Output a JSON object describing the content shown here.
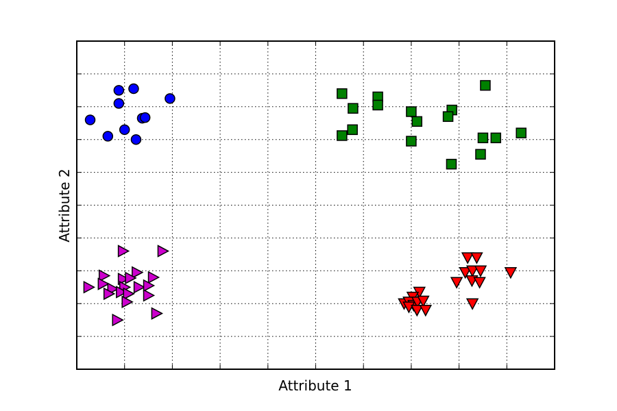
{
  "chart_data": {
    "type": "scatter",
    "title": "",
    "xlabel": "Attribute 1",
    "ylabel": "Attribute 2",
    "xlim": [
      0,
      10
    ],
    "ylim": [
      0,
      10
    ],
    "x_gridlines": [
      1,
      2,
      3,
      4,
      5,
      6,
      7,
      8,
      9
    ],
    "y_gridlines": [
      1,
      2,
      3,
      4,
      5,
      6,
      7,
      8,
      9
    ],
    "grid": true,
    "tick_labels_shown": false,
    "series": [
      {
        "marker": "circle",
        "color": "#0000ff",
        "points": [
          [
            0.88,
            8.5
          ],
          [
            1.19,
            8.55
          ],
          [
            0.88,
            8.1
          ],
          [
            1.95,
            8.25
          ],
          [
            0.28,
            7.6
          ],
          [
            1.37,
            7.65
          ],
          [
            1.43,
            7.67
          ],
          [
            1.0,
            7.3
          ],
          [
            0.65,
            7.1
          ],
          [
            1.24,
            7.0
          ]
        ]
      },
      {
        "marker": "square",
        "color": "#008000",
        "points": [
          [
            5.55,
            8.4
          ],
          [
            6.3,
            8.3
          ],
          [
            6.3,
            8.05
          ],
          [
            5.78,
            7.95
          ],
          [
            7.0,
            7.85
          ],
          [
            7.12,
            7.55
          ],
          [
            7.85,
            7.9
          ],
          [
            7.77,
            7.7
          ],
          [
            8.55,
            8.65
          ],
          [
            5.77,
            7.3
          ],
          [
            5.55,
            7.12
          ],
          [
            7.0,
            6.95
          ],
          [
            8.5,
            7.05
          ],
          [
            8.77,
            7.05
          ],
          [
            9.3,
            7.2
          ],
          [
            8.45,
            6.55
          ],
          [
            7.84,
            6.25
          ]
        ]
      },
      {
        "marker": "triangle-right",
        "color": "#cc00cc",
        "points": [
          [
            0.97,
            3.6
          ],
          [
            1.8,
            3.6
          ],
          [
            0.57,
            2.85
          ],
          [
            1.26,
            2.95
          ],
          [
            1.6,
            2.8
          ],
          [
            0.97,
            2.75
          ],
          [
            1.12,
            2.78
          ],
          [
            0.25,
            2.5
          ],
          [
            0.55,
            2.6
          ],
          [
            0.75,
            2.45
          ],
          [
            1.0,
            2.5
          ],
          [
            1.3,
            2.5
          ],
          [
            1.5,
            2.55
          ],
          [
            0.67,
            2.3
          ],
          [
            0.93,
            2.35
          ],
          [
            1.08,
            2.3
          ],
          [
            1.5,
            2.25
          ],
          [
            1.05,
            2.05
          ],
          [
            1.67,
            1.7
          ],
          [
            0.85,
            1.5
          ]
        ]
      },
      {
        "marker": "triangle-down",
        "color": "#ff0000",
        "points": [
          [
            8.18,
            3.4
          ],
          [
            8.37,
            3.4
          ],
          [
            8.13,
            2.95
          ],
          [
            8.28,
            3.0
          ],
          [
            8.45,
            3.0
          ],
          [
            9.08,
            2.95
          ],
          [
            7.95,
            2.65
          ],
          [
            8.27,
            2.7
          ],
          [
            8.43,
            2.65
          ],
          [
            7.17,
            2.35
          ],
          [
            7.03,
            2.2
          ],
          [
            6.85,
            2.0
          ],
          [
            6.95,
            2.05
          ],
          [
            7.05,
            1.95
          ],
          [
            7.13,
            2.05
          ],
          [
            7.25,
            2.08
          ],
          [
            6.95,
            1.9
          ],
          [
            7.12,
            1.8
          ],
          [
            7.3,
            1.8
          ],
          [
            8.28,
            2.0
          ]
        ]
      }
    ]
  }
}
